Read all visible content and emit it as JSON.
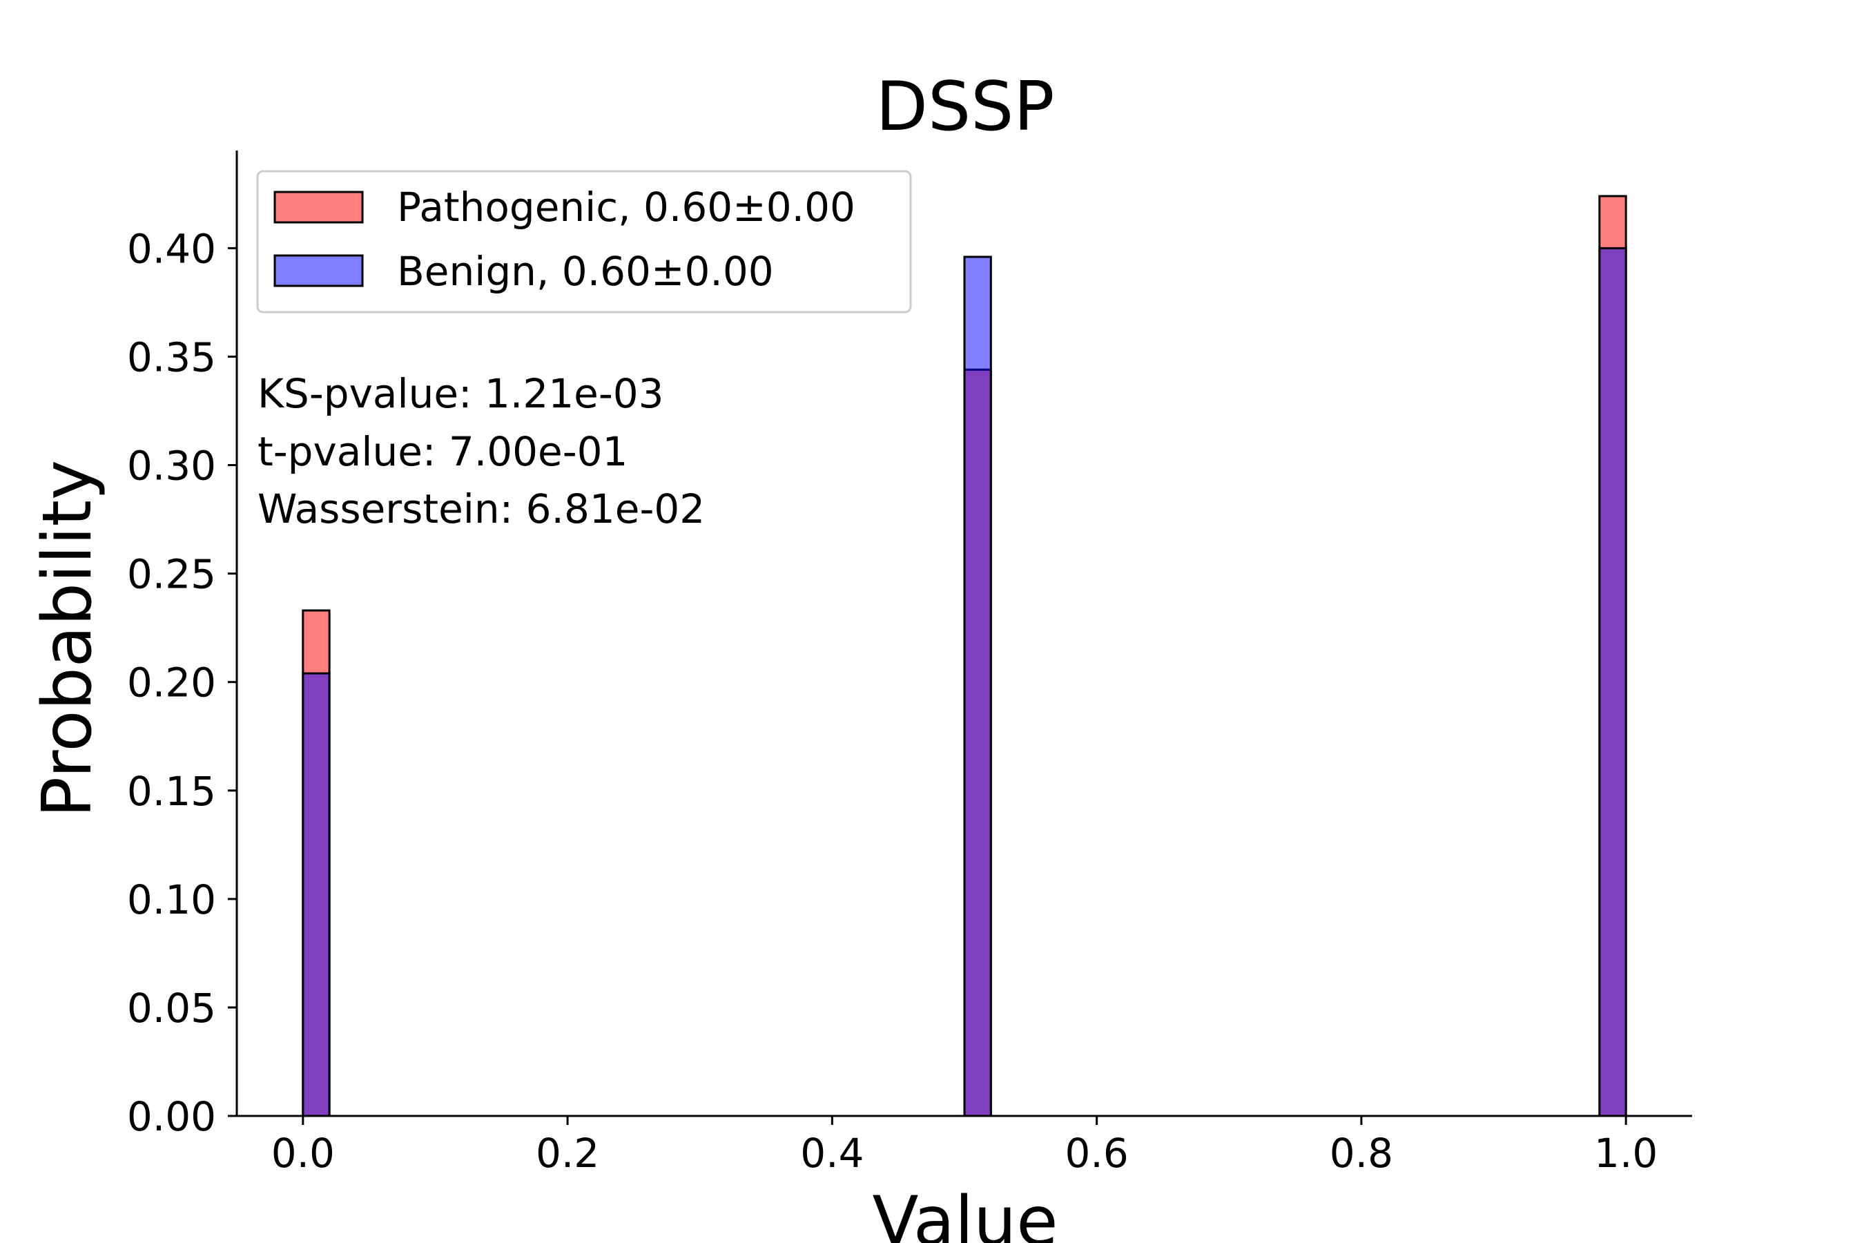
{
  "chart_data": {
    "type": "histogram",
    "title": "DSSP",
    "xlabel": "Value",
    "ylabel": "Probability",
    "xlim": [
      -0.05,
      1.05
    ],
    "ylim": [
      0,
      0.445
    ],
    "x_ticks": [
      "0.0",
      "0.2",
      "0.4",
      "0.6",
      "0.8",
      "1.0"
    ],
    "y_ticks": [
      "0.00",
      "0.05",
      "0.10",
      "0.15",
      "0.20",
      "0.25",
      "0.30",
      "0.35",
      "0.40"
    ],
    "bin_width": 0.02,
    "bins": [
      {
        "x0": 0.0,
        "x1": 0.02
      },
      {
        "x0": 0.5,
        "x1": 0.52
      },
      {
        "x0": 0.98,
        "x1": 1.0
      }
    ],
    "series": [
      {
        "name": "Pathogenic, 0.60±0.00",
        "color": "#ff0000",
        "alpha": 0.5,
        "values": [
          0.233,
          0.344,
          0.424
        ]
      },
      {
        "name": "Benign, 0.60±0.00",
        "color": "#0000ff",
        "alpha": 0.5,
        "values": [
          0.204,
          0.396,
          0.4
        ]
      }
    ],
    "legend_position": "top-left",
    "annotations": [
      "KS-pvalue: 1.21e-03",
      "t-pvalue: 7.00e-01",
      "Wasserstein: 6.81e-02"
    ],
    "grid": false
  }
}
